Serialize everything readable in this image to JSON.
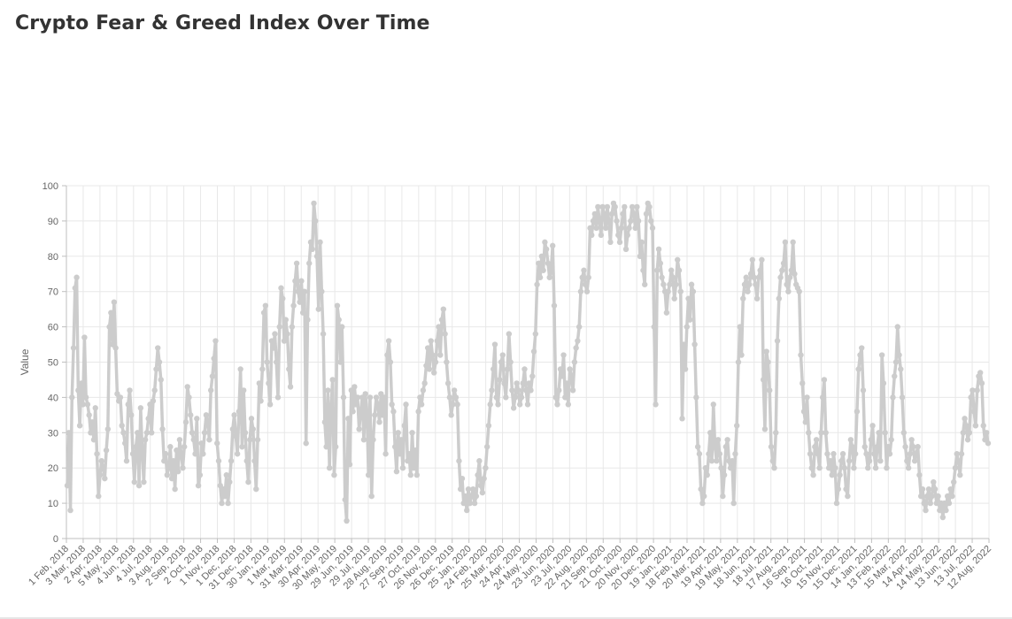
{
  "page": {
    "title": "Crypto Fear & Greed Index Over Time"
  },
  "chart_data": {
    "type": "line",
    "title": "Crypto Fear & Greed Index Over Time",
    "xlabel": "",
    "ylabel": "Value",
    "ylim": [
      0,
      100
    ],
    "y_ticks": [
      0,
      10,
      20,
      30,
      40,
      50,
      60,
      70,
      80,
      90,
      100
    ],
    "grid": true,
    "legend": "none",
    "colors": {
      "line": "#cccccc",
      "grid": "#e8e8e8",
      "axis": "#bfbfbf",
      "tick_text": "#666666"
    },
    "x_tick_labels": [
      "1 Feb, 2018",
      "3 Mar, 2018",
      "2 Apr, 2018",
      "5 May, 2018",
      "4 Jun, 2018",
      "4 Jul, 2018",
      "3 Aug, 2018",
      "2 Sep, 2018",
      "2 Oct, 2018",
      "1 Nov, 2018",
      "1 Dec, 2018",
      "31 Dec, 2018",
      "30 Jan, 2019",
      "1 Mar, 2019",
      "31 Mar, 2019",
      "30 Apr, 2019",
      "30 May, 2019",
      "29 Jun, 2019",
      "29 Jul, 2019",
      "28 Aug, 2019",
      "27 Sep, 2019",
      "27 Oct, 2019",
      "26 Nov, 2019",
      "26 Dec, 2019",
      "25 Jan, 2020",
      "24 Feb, 2020",
      "25 Mar, 2020",
      "24 Apr, 2020",
      "24 May, 2020",
      "23 Jun, 2020",
      "23 Jul, 2020",
      "22 Aug, 2020",
      "21 Sep, 2020",
      "21 Oct, 2020",
      "20 Nov, 2020",
      "20 Dec, 2020",
      "19 Jan, 2021",
      "18 Feb, 2021",
      "20 Mar, 2021",
      "19 Apr, 2021",
      "19 May, 2021",
      "18 Jun, 2021",
      "18 Jul, 2021",
      "17 Aug, 2021",
      "16 Sep, 2021",
      "16 Oct, 2021",
      "15 Nov, 2021",
      "15 Dec, 2021",
      "14 Jan, 2022",
      "13 Feb, 2022",
      "15 Mar, 2022",
      "14 Apr, 2022",
      "14 May, 2022",
      "13 Jun, 2022",
      "13 Jul, 2022",
      "12 Aug, 2022"
    ],
    "series": [
      {
        "values": [
          15,
          30,
          8,
          40,
          54,
          71,
          74,
          42,
          32,
          44,
          38,
          57,
          40,
          38,
          35,
          30,
          33,
          28,
          37,
          24,
          12,
          18,
          22,
          20,
          17,
          25,
          31,
          60,
          64,
          55,
          67,
          54,
          41,
          39,
          40,
          32,
          30,
          27,
          22,
          38,
          42,
          35,
          24,
          16,
          26,
          30,
          15,
          37,
          25,
          16,
          28,
          30,
          34,
          38,
          30,
          39,
          42,
          48,
          54,
          50,
          45,
          31,
          22,
          24,
          18,
          20,
          26,
          17,
          22,
          14,
          25,
          19,
          28,
          24,
          20,
          26,
          33,
          43,
          40,
          35,
          30,
          28,
          24,
          34,
          15,
          18,
          27,
          24,
          30,
          35,
          33,
          28,
          42,
          46,
          51,
          56,
          27,
          22,
          15,
          10,
          14,
          12,
          18,
          10,
          16,
          22,
          31,
          35,
          29,
          24,
          36,
          48,
          26,
          42,
          30,
          22,
          16,
          28,
          34,
          31,
          22,
          14,
          28,
          44,
          39,
          48,
          64,
          66,
          50,
          44,
          38,
          56,
          54,
          58,
          50,
          40,
          60,
          71,
          68,
          56,
          62,
          58,
          48,
          43,
          60,
          66,
          73,
          78,
          70,
          67,
          73,
          64,
          70,
          27,
          62,
          78,
          84,
          82,
          95,
          90,
          80,
          65,
          84,
          70,
          58,
          33,
          26,
          42,
          20,
          37,
          45,
          18,
          26,
          66,
          62,
          50,
          60,
          40,
          11,
          5,
          34,
          21,
          42,
          36,
          43,
          38,
          40,
          31,
          36,
          40,
          28,
          41,
          36,
          18,
          40,
          12,
          28,
          35,
          40,
          38,
          33,
          41,
          35,
          40,
          24,
          52,
          56,
          50,
          38,
          36,
          26,
          19,
          30,
          24,
          28,
          20,
          32,
          38,
          22,
          24,
          18,
          30,
          20,
          25,
          18,
          36,
          40,
          38,
          42,
          44,
          49,
          54,
          48,
          56,
          52,
          47,
          50,
          56,
          60,
          52,
          62,
          65,
          58,
          50,
          44,
          40,
          35,
          38,
          42,
          40,
          38,
          22,
          14,
          17,
          10,
          12,
          8,
          14,
          10,
          12,
          14,
          10,
          12,
          18,
          22,
          15,
          13,
          17,
          20,
          26,
          32,
          38,
          42,
          48,
          55,
          40,
          38,
          45,
          50,
          52,
          44,
          40,
          48,
          58,
          50,
          42,
          37,
          40,
          44,
          42,
          38,
          40,
          44,
          48,
          42,
          38,
          44,
          42,
          46,
          53,
          58,
          72,
          78,
          74,
          80,
          76,
          84,
          82,
          78,
          74,
          76,
          83,
          66,
          40,
          38,
          42,
          48,
          46,
          52,
          40,
          44,
          38,
          48,
          46,
          42,
          50,
          54,
          56,
          60,
          70,
          74,
          76,
          72,
          70,
          74,
          88,
          86,
          90,
          92,
          88,
          94,
          90,
          86,
          94,
          92,
          88,
          94,
          90,
          84,
          92,
          95,
          94,
          90,
          86,
          84,
          88,
          92,
          94,
          82,
          86,
          88,
          90,
          94,
          92,
          88,
          94,
          90,
          80,
          84,
          76,
          72,
          92,
          95,
          94,
          90,
          88,
          60,
          38,
          76,
          82,
          78,
          74,
          72,
          70,
          64,
          70,
          72,
          76,
          74,
          68,
          72,
          79,
          76,
          70,
          34,
          55,
          48,
          60,
          68,
          62,
          72,
          70,
          55,
          40,
          26,
          24,
          14,
          10,
          12,
          20,
          18,
          24,
          30,
          22,
          38,
          26,
          22,
          28,
          24,
          20,
          12,
          18,
          26,
          28,
          22,
          20,
          22,
          10,
          24,
          32,
          50,
          60,
          52,
          68,
          72,
          74,
          70,
          72,
          75,
          79,
          74,
          72,
          68,
          74,
          76,
          79,
          45,
          31,
          53,
          50,
          42,
          26,
          22,
          20,
          30,
          56,
          68,
          74,
          76,
          78,
          84,
          72,
          70,
          74,
          76,
          84,
          75,
          72,
          71,
          70,
          52,
          44,
          36,
          33,
          40,
          30,
          24,
          20,
          18,
          26,
          28,
          24,
          20,
          30,
          40,
          45,
          30,
          24,
          20,
          22,
          18,
          24,
          20,
          10,
          14,
          18,
          22,
          24,
          20,
          14,
          12,
          22,
          28,
          26,
          20,
          24,
          36,
          48,
          52,
          54,
          42,
          26,
          24,
          20,
          22,
          28,
          32,
          24,
          20,
          26,
          30,
          22,
          52,
          44,
          30,
          20,
          26,
          24,
          28,
          40,
          46,
          50,
          60,
          52,
          48,
          40,
          30,
          26,
          22,
          20,
          24,
          28,
          26,
          22,
          24,
          26,
          18,
          12,
          14,
          10,
          8,
          12,
          14,
          10,
          12,
          16,
          14,
          10,
          12,
          8,
          10,
          6,
          10,
          8,
          12,
          10,
          14,
          12,
          16,
          20,
          24,
          22,
          18,
          24,
          30,
          34,
          32,
          28,
          30,
          40,
          42,
          36,
          32,
          42,
          46,
          47,
          44,
          32,
          28,
          30,
          27
        ]
      }
    ]
  }
}
